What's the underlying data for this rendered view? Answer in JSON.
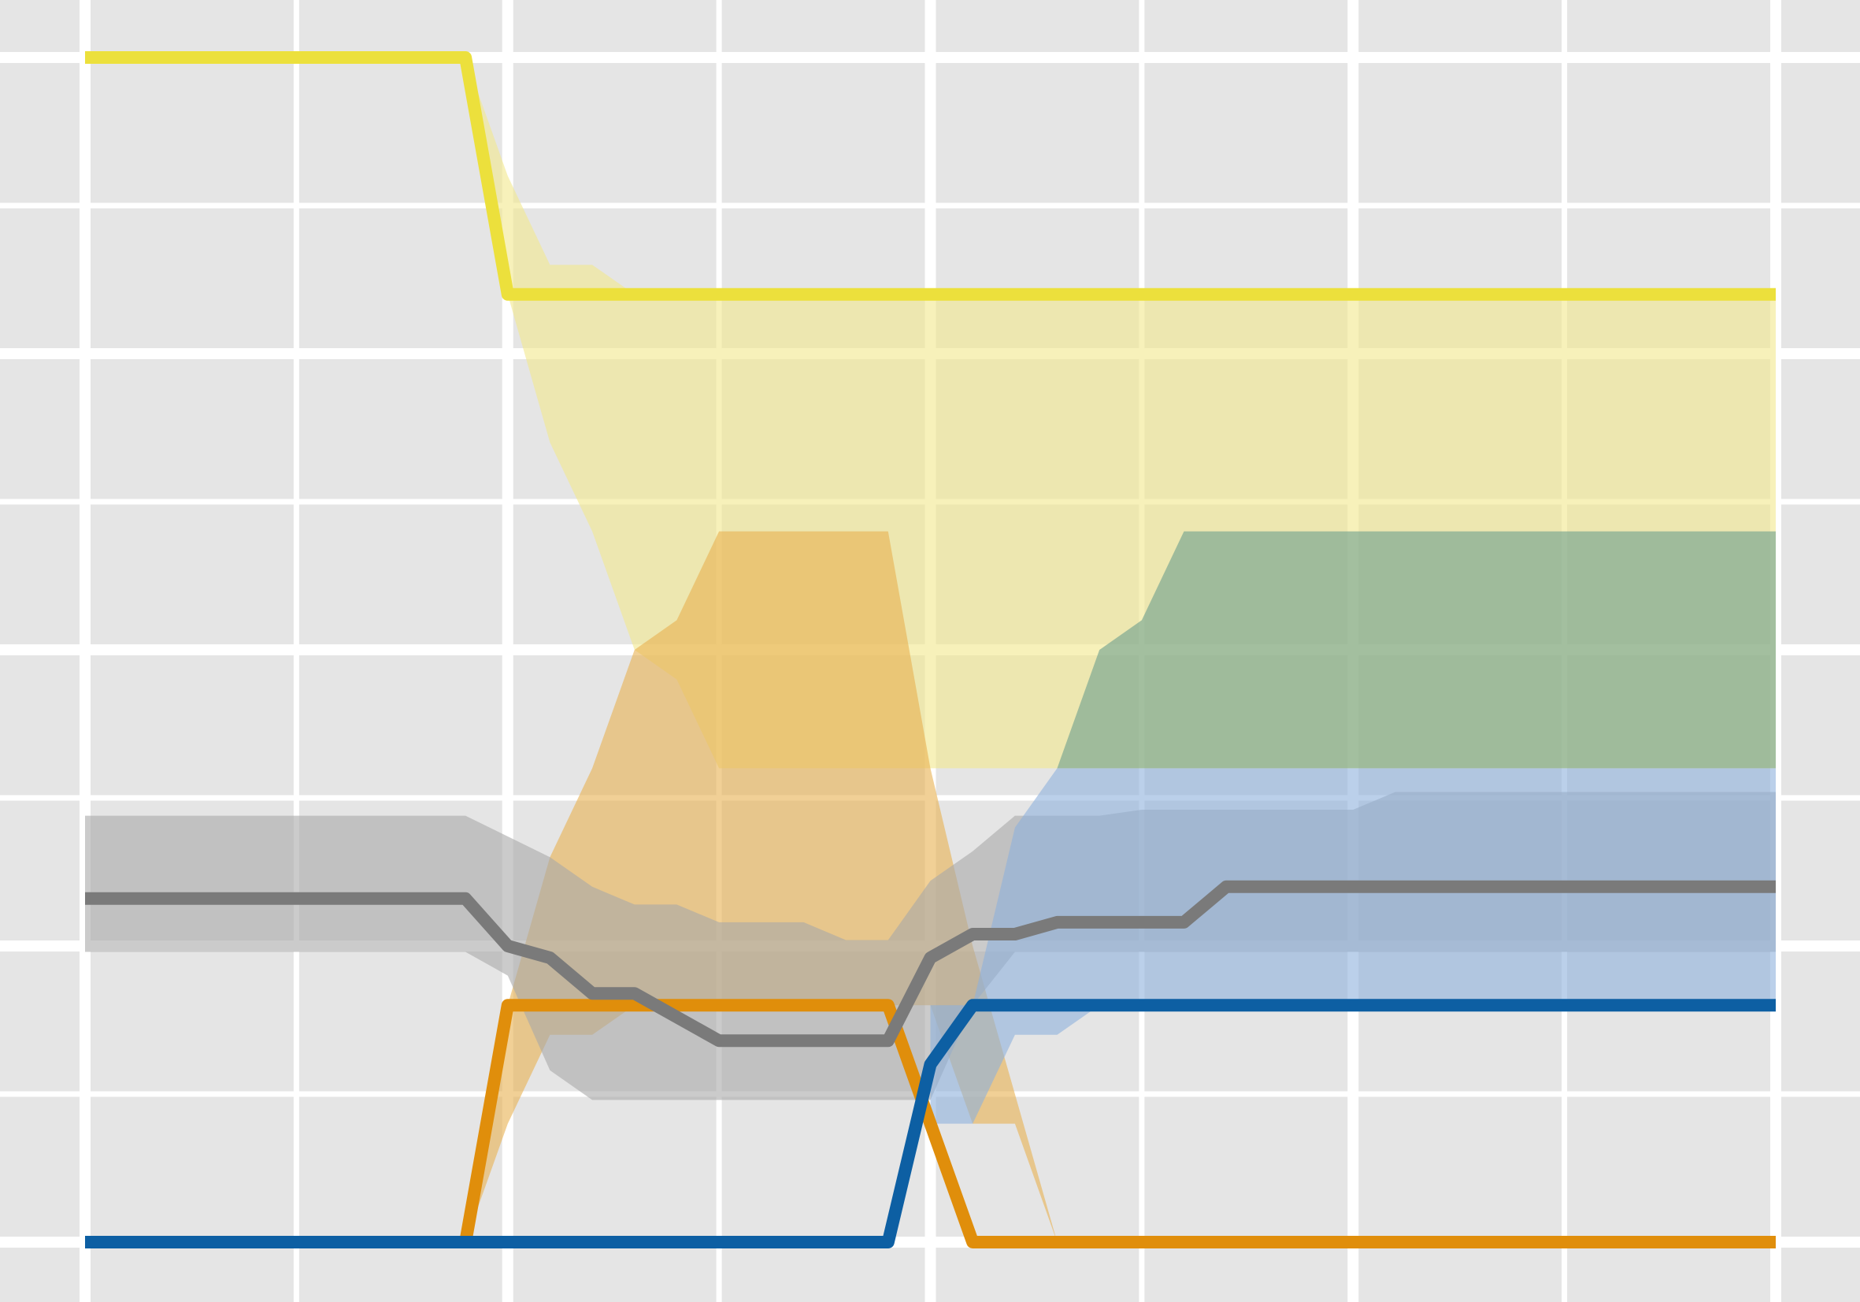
{
  "chart_data": {
    "type": "line",
    "title": "",
    "xlabel": "",
    "ylabel": "",
    "grid": true,
    "legend": "none",
    "xlim": [
      -0.2,
      8.4
    ],
    "ylim": [
      -0.02,
      1.07
    ],
    "x_major_ticks": [
      0,
      2,
      4,
      6,
      8
    ],
    "x_minor_ticks": [
      1,
      3,
      5,
      7
    ],
    "y_major_ticks": [
      0,
      0.25,
      0.5,
      0.75,
      1.0
    ],
    "y_minor_ticks": [
      0.125,
      0.375,
      0.625,
      0.875
    ],
    "background_color": "#e5e5e5",
    "grid_color": "#ffffff",
    "series": [
      {
        "color": "#ece03c",
        "band_color": "#f2e88c",
        "line": [
          [
            0,
            1.0
          ],
          [
            1.8,
            1.0
          ],
          [
            2.0,
            0.8
          ],
          [
            8.0,
            0.8
          ]
        ],
        "band_upper": [
          [
            1.8,
            1.0
          ],
          [
            2.0,
            0.9
          ],
          [
            2.2,
            0.825
          ],
          [
            2.4,
            0.825
          ],
          [
            2.6,
            0.8
          ],
          [
            8.0,
            0.8
          ]
        ],
        "band_lower": [
          [
            1.8,
            1.0
          ],
          [
            2.0,
            0.8
          ],
          [
            2.2,
            0.675
          ],
          [
            2.4,
            0.6
          ],
          [
            2.6,
            0.5
          ],
          [
            2.8,
            0.475
          ],
          [
            3.0,
            0.4
          ],
          [
            4.6,
            0.4
          ],
          [
            5.0,
            0.4
          ],
          [
            8.0,
            0.4
          ]
        ]
      },
      {
        "color": "#e08e0b",
        "band_color": "#e8b050",
        "line": [
          [
            1.8,
            0.0
          ],
          [
            2.0,
            0.2
          ],
          [
            3.8,
            0.2
          ],
          [
            4.2,
            0.0
          ],
          [
            8.0,
            0.0
          ]
        ],
        "band_upper": [
          [
            1.8,
            0.0
          ],
          [
            2.0,
            0.2
          ],
          [
            2.2,
            0.325
          ],
          [
            2.4,
            0.4
          ],
          [
            2.6,
            0.5
          ],
          [
            2.8,
            0.525
          ],
          [
            3.0,
            0.6
          ],
          [
            3.6,
            0.6
          ],
          [
            3.8,
            0.6
          ],
          [
            4.0,
            0.4
          ],
          [
            4.2,
            0.25
          ]
        ],
        "band_lower": [
          [
            1.8,
            0.0
          ],
          [
            2.0,
            0.1
          ],
          [
            2.2,
            0.175
          ],
          [
            2.4,
            0.175
          ],
          [
            2.6,
            0.2
          ],
          [
            3.8,
            0.2
          ],
          [
            4.0,
            0.2
          ],
          [
            4.2,
            0.1
          ],
          [
            4.4,
            0.1
          ],
          [
            4.6,
            0.0
          ]
        ]
      },
      {
        "color": "#7a7a7a",
        "band_color": "#a8a8a8",
        "line": [
          [
            0,
            0.29
          ],
          [
            1.8,
            0.29
          ],
          [
            2.0,
            0.25
          ],
          [
            2.2,
            0.24
          ],
          [
            2.4,
            0.21
          ],
          [
            2.6,
            0.21
          ],
          [
            3.0,
            0.17
          ],
          [
            3.6,
            0.17
          ],
          [
            3.8,
            0.17
          ],
          [
            4.0,
            0.24
          ],
          [
            4.2,
            0.26
          ],
          [
            4.4,
            0.26
          ],
          [
            4.6,
            0.27
          ],
          [
            5.0,
            0.27
          ],
          [
            5.2,
            0.27
          ],
          [
            5.4,
            0.3
          ],
          [
            8.0,
            0.3
          ]
        ],
        "band_upper": [
          [
            0,
            0.36
          ],
          [
            1.8,
            0.36
          ],
          [
            2.2,
            0.325
          ],
          [
            2.4,
            0.3
          ],
          [
            2.6,
            0.285
          ],
          [
            2.8,
            0.285
          ],
          [
            3.0,
            0.27
          ],
          [
            3.4,
            0.27
          ],
          [
            3.6,
            0.255
          ],
          [
            3.8,
            0.255
          ],
          [
            4.0,
            0.305
          ],
          [
            4.2,
            0.33
          ],
          [
            4.4,
            0.36
          ],
          [
            4.8,
            0.36
          ],
          [
            5.0,
            0.365
          ],
          [
            5.4,
            0.365
          ],
          [
            6.0,
            0.365
          ],
          [
            6.2,
            0.38
          ],
          [
            8.0,
            0.38
          ]
        ],
        "band_lower": [
          [
            0,
            0.245
          ],
          [
            1.8,
            0.245
          ],
          [
            2.0,
            0.225
          ],
          [
            2.2,
            0.145
          ],
          [
            2.4,
            0.12
          ],
          [
            2.6,
            0.12
          ],
          [
            2.8,
            0.12
          ],
          [
            3.0,
            0.12
          ],
          [
            3.6,
            0.12
          ],
          [
            3.8,
            0.12
          ],
          [
            4.0,
            0.12
          ],
          [
            4.2,
            0.2
          ],
          [
            4.4,
            0.245
          ],
          [
            4.6,
            0.245
          ],
          [
            8.0,
            0.245
          ]
        ]
      },
      {
        "color": "#0d5fa3",
        "band_color": "#8eb0dc",
        "line": [
          [
            0,
            0.0
          ],
          [
            3.8,
            0.0
          ],
          [
            4.0,
            0.15
          ],
          [
            4.2,
            0.2
          ],
          [
            8.0,
            0.2
          ]
        ],
        "band_upper": [
          [
            4.0,
            0.2
          ],
          [
            4.2,
            0.2
          ],
          [
            4.4,
            0.35
          ],
          [
            4.6,
            0.4
          ],
          [
            5.0,
            0.4
          ],
          [
            8.0,
            0.4
          ]
        ],
        "band_lower": [
          [
            4.0,
            0.1
          ],
          [
            4.2,
            0.1
          ],
          [
            4.4,
            0.175
          ],
          [
            4.6,
            0.175
          ],
          [
            4.8,
            0.2
          ],
          [
            8.0,
            0.2
          ]
        ]
      },
      {
        "color": "#4b8e8e",
        "band_color": "#6a9e8e",
        "line": [],
        "band_upper": [
          [
            4.6,
            0.4
          ],
          [
            4.8,
            0.5
          ],
          [
            5.0,
            0.525
          ],
          [
            5.2,
            0.6
          ],
          [
            8.0,
            0.6
          ]
        ],
        "band_lower": [
          [
            4.6,
            0.4
          ],
          [
            8.0,
            0.4
          ]
        ]
      }
    ]
  }
}
